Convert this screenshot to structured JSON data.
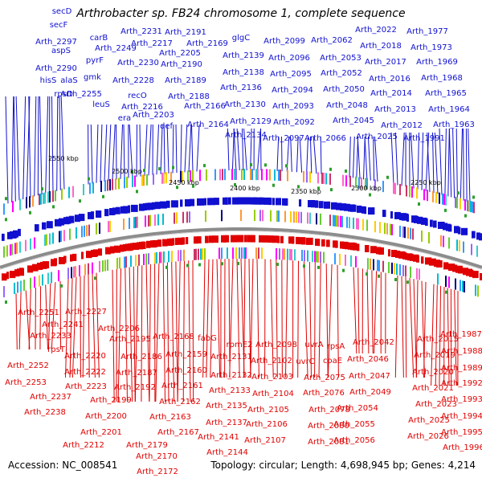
{
  "title": "Arthrobacter sp. FB24 chromosome 1, complete sequence",
  "footer": {
    "accession": "Accession: NC_008541",
    "summary": "Topology: circular; Length: 4,698,945 bp; Genes: 4,214"
  },
  "colors": {
    "forward": "#1010d0",
    "reverse": "#e00000",
    "tick": "#2ca02c",
    "backbone": "#8c8c8c"
  },
  "scale_labels": [
    "2550 kbp",
    "2500 kbp",
    "2450 kbp",
    "2400 kbp",
    "2350 kbp",
    "2300 kbp",
    "2250 kbp"
  ],
  "top_labels": [
    "secD",
    "secF",
    "Arth_2297",
    "aspS",
    "Arth_2290",
    "hisS",
    "alaS",
    "rpsD",
    "carB",
    "pyrF",
    "gmk",
    "Arth_2255",
    "leuS",
    "Arth_2249",
    "Arth_2231",
    "Arth_2217",
    "Arth_2230",
    "Arth_2228",
    "recO",
    "Arth_2216",
    "era",
    "Arth_2203",
    "def",
    "Arth_2191",
    "Arth_2205",
    "Arth_2190",
    "Arth_2189",
    "Arth_2188",
    "Arth_2169",
    "Arth_2166",
    "Arth_2164",
    "glgC",
    "Arth_2139",
    "Arth_2138",
    "Arth_2136",
    "Arth_2130",
    "Arth_2129",
    "Arth_2134",
    "Arth_2099",
    "Arth_2096",
    "Arth_2095",
    "Arth_2094",
    "Arth_2093",
    "Arth_2092",
    "Arth_2097",
    "Arth_2062",
    "Arth_2053",
    "Arth_2052",
    "Arth_2050",
    "Arth_2048",
    "Arth_2045",
    "Arth_2066",
    "Arth_2022",
    "Arth_2018",
    "Arth_2017",
    "Arth_2016",
    "Arth_2014",
    "Arth_2013",
    "Arth_2012",
    "Arth_2025",
    "Arth_1977",
    "Arth_1973",
    "Arth_1969",
    "Arth_1968",
    "Arth_1965",
    "Arth_1964",
    "Arth_1963",
    "Arth_1991"
  ],
  "bottom_labels": [
    "Arth_2251",
    "Arth_2227",
    "Arth_2241",
    "Arth_2233",
    "Arth_2206",
    "rpsT",
    "Arth_2195",
    "Arth_2168",
    "fabG",
    "rpmE2",
    "Arth_2220",
    "Arth_2186",
    "Arth_2159",
    "Arth_2131",
    "Arth_2098",
    "uvrA",
    "rpsA",
    "Arth_2042",
    "Arth_2015",
    "Arth_1987",
    "Arth_2252",
    "Arth_2222",
    "Arth_2187",
    "Arth_2160",
    "Arth_2102",
    "uvrC",
    "coaE",
    "Arth_2046",
    "Arth_2019",
    "Arth_1988",
    "Arth_2253",
    "Arth_2223",
    "Arth_2192",
    "Arth_2161",
    "Arth_2132",
    "Arth_2103",
    "Arth_2075",
    "Arth_2047",
    "Arth_2020",
    "Arth_1989",
    "Arth_2237",
    "Arth_2199",
    "Arth_2162",
    "Arth_2133",
    "Arth_2104",
    "Arth_2076",
    "Arth_2049",
    "Arth_2021",
    "Arth_1992",
    "Arth_2238",
    "Arth_2200",
    "Arth_2163",
    "Arth_2135",
    "Arth_2105",
    "Arth_2078",
    "Arth_2054",
    "Arth_2023",
    "Arth_1993",
    "Arth_2201",
    "Arth_2167",
    "Arth_2137",
    "Arth_2106",
    "Arth_2080",
    "Arth_2055",
    "Arth_2025",
    "Arth_1994",
    "Arth_2212",
    "Arth_2179",
    "Arth_2141",
    "Arth_2107",
    "Arth_2081",
    "Arth_2056",
    "Arth_2026",
    "Arth_1995",
    "Arth_2170",
    "Arth_2144",
    "Arth_1996",
    "Arth_2172"
  ]
}
